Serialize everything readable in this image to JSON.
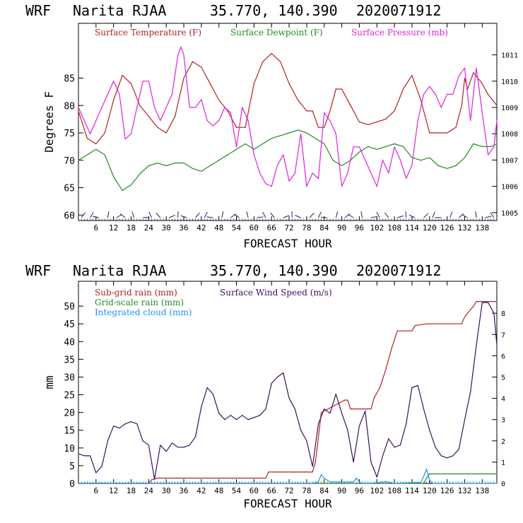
{
  "panels": [
    {
      "header": {
        "model": "WRF",
        "station": "Narita RJAA",
        "coords": "35.770, 140.390",
        "init": "2020071912"
      },
      "xlabel": "FORECAST HOUR",
      "ylabel_left": "Degrees F",
      "legend": [
        {
          "text": "Surface Temperature (F)",
          "color": "#b22222"
        },
        {
          "text": "Surface Dewpoint (F)",
          "color": "#228b22"
        },
        {
          "text": "Surface Pressure (mb)",
          "color": "#dd22dd"
        }
      ]
    },
    {
      "header": {
        "model": "WRF",
        "station": "Narita RJAA",
        "coords": "35.770, 140.390",
        "init": "2020071912"
      },
      "xlabel": "FORECAST HOUR",
      "ylabel_left": "mm",
      "legend": [
        {
          "text": "Sub-grid rain (mm)",
          "color": "#b22222"
        },
        {
          "text": "Surface Wind Speed (m/s)",
          "color": "#3a1060"
        },
        {
          "text": "Grid-scale rain (mm)",
          "color": "#228b22"
        },
        {
          "text": "Integrated cloud (mm)",
          "color": "#1e90ff"
        }
      ]
    }
  ],
  "chart_data": [
    {
      "type": "line",
      "xlim": [
        0,
        143
      ],
      "x_ticks": [
        6,
        12,
        18,
        24,
        30,
        36,
        42,
        48,
        54,
        60,
        66,
        72,
        78,
        84,
        90,
        96,
        102,
        108,
        114,
        120,
        126,
        132,
        138
      ],
      "ylim_left": [
        59,
        95
      ],
      "y_ticks_left": [
        60,
        65,
        70,
        75,
        80,
        85
      ],
      "ylim_right": [
        1004.7,
        1012.2
      ],
      "y_ticks_right": [
        1005,
        1006,
        1007,
        1008,
        1009,
        1010,
        1011
      ],
      "series": [
        {
          "name": "Surface Temperature (F)",
          "axis": "left",
          "color": "#b22222",
          "x": [
            0,
            3,
            6,
            9,
            12,
            15,
            18,
            21,
            24,
            27,
            30,
            33,
            36,
            39,
            42,
            45,
            48,
            51,
            54,
            57,
            60,
            63,
            66,
            69,
            72,
            75,
            78,
            80,
            82,
            84,
            86,
            88,
            90,
            93,
            96,
            99,
            102,
            105,
            108,
            111,
            114,
            117,
            120,
            123,
            126,
            129,
            131,
            132,
            133,
            135,
            138,
            140,
            143
          ],
          "y": [
            79,
            74,
            73,
            75,
            81,
            85.5,
            84,
            80,
            78,
            76,
            75,
            78,
            85,
            88,
            87,
            84,
            81,
            79,
            76,
            76,
            84,
            88,
            89.5,
            88,
            84,
            81,
            79,
            79,
            76,
            76,
            79,
            83,
            83,
            80,
            77,
            76.5,
            77,
            77.5,
            79,
            83,
            85.5,
            81,
            75,
            75,
            75,
            76,
            80,
            85,
            83,
            86,
            84,
            82,
            80
          ]
        },
        {
          "name": "Surface Dewpoint (F)",
          "axis": "left",
          "color": "#228b22",
          "x": [
            0,
            3,
            6,
            9,
            12,
            15,
            18,
            21,
            24,
            27,
            30,
            33,
            36,
            39,
            42,
            45,
            48,
            51,
            54,
            57,
            60,
            63,
            66,
            69,
            72,
            75,
            78,
            81,
            84,
            87,
            90,
            93,
            96,
            99,
            102,
            105,
            108,
            111,
            114,
            117,
            120,
            123,
            126,
            129,
            132,
            135,
            138,
            141,
            143
          ],
          "y": [
            70,
            71,
            72,
            71,
            67,
            64.5,
            65.5,
            67.5,
            69,
            69.5,
            69,
            69.5,
            69.5,
            68.5,
            68,
            69,
            70,
            71,
            72,
            73,
            72,
            73,
            74,
            74.5,
            75,
            75.5,
            75,
            74,
            73,
            70,
            69,
            70,
            71.5,
            72.5,
            72,
            72.5,
            73,
            72.5,
            70.5,
            70,
            70.5,
            69,
            68.5,
            69,
            70.5,
            73,
            72.5,
            72.5,
            73
          ]
        },
        {
          "name": "Surface Pressure (mb)",
          "axis": "right",
          "color": "#dd22dd",
          "x": [
            0,
            2,
            4,
            6,
            8,
            10,
            12,
            14,
            16,
            18,
            20,
            22,
            24,
            26,
            28,
            30,
            32,
            34,
            35,
            36,
            38,
            40,
            42,
            44,
            46,
            48,
            50,
            52,
            54,
            56,
            58,
            60,
            62,
            64,
            66,
            68,
            70,
            72,
            74,
            76,
            78,
            80,
            82,
            84,
            86,
            88,
            90,
            92,
            94,
            96,
            98,
            100,
            102,
            104,
            106,
            108,
            110,
            112,
            114,
            116,
            118,
            120,
            122,
            124,
            126,
            128,
            130,
            132,
            134,
            136,
            138,
            140,
            142,
            143
          ],
          "y": [
            1009,
            1008.5,
            1008,
            1008.5,
            1009,
            1009.5,
            1010,
            1009.5,
            1007.8,
            1008,
            1009,
            1010,
            1010,
            1009,
            1008.5,
            1009,
            1009.5,
            1011,
            1011.3,
            1011,
            1009,
            1009,
            1009.3,
            1008.5,
            1008.3,
            1008.5,
            1009,
            1008.8,
            1007.5,
            1009,
            1008.5,
            1007.2,
            1006.5,
            1006.1,
            1006,
            1006.8,
            1007.2,
            1006.2,
            1006.5,
            1008,
            1006,
            1006.5,
            1006.3,
            1008.8,
            1008.5,
            1008,
            1006,
            1006.5,
            1007.5,
            1007.5,
            1007,
            1006.5,
            1006,
            1007,
            1006.5,
            1007.5,
            1007,
            1006.3,
            1006.8,
            1008.5,
            1009.5,
            1009.8,
            1009.5,
            1009,
            1009.5,
            1009.5,
            1010.2,
            1010.5,
            1008.5,
            1010.5,
            1008.8,
            1007.2,
            1007.5,
            1008.5
          ]
        }
      ],
      "wind_barbs": "along bottom edge"
    },
    {
      "type": "line",
      "xlim": [
        0,
        143
      ],
      "x_ticks": [
        6,
        12,
        18,
        24,
        30,
        36,
        42,
        48,
        54,
        60,
        66,
        72,
        78,
        84,
        90,
        96,
        102,
        108,
        114,
        120,
        126,
        132,
        138
      ],
      "ylim_left": [
        0,
        57
      ],
      "y_ticks_left": [
        0,
        5,
        10,
        15,
        20,
        25,
        30,
        35,
        40,
        45,
        50
      ],
      "ylim_right": [
        0,
        9.5
      ],
      "y_ticks_right": [
        0,
        1,
        2,
        3,
        4,
        5,
        6,
        7,
        8
      ],
      "series": [
        {
          "name": "Sub-grid rain (mm)",
          "axis": "left",
          "color": "#b22222",
          "x": [
            0,
            24,
            25,
            27,
            64,
            65,
            80,
            81,
            82,
            83,
            91,
            92,
            93,
            100,
            101,
            103,
            105,
            107,
            109,
            111,
            114,
            115,
            119,
            120,
            131,
            132,
            135,
            136,
            143
          ],
          "y": [
            0,
            0,
            1,
            1.5,
            1.5,
            3.2,
            3.2,
            6,
            13,
            20,
            23.5,
            23.5,
            21,
            21,
            24,
            27,
            32,
            38,
            43,
            43,
            43,
            44.5,
            45,
            45,
            45,
            47,
            50,
            51.3,
            51.3
          ]
        },
        {
          "name": "Grid-scale rain (mm)",
          "axis": "left",
          "color": "#228b22",
          "x": [
            0,
            118,
            119,
            120,
            143
          ],
          "y": [
            0,
            0,
            1.5,
            2.7,
            2.7
          ]
        },
        {
          "name": "Integrated cloud (mm)",
          "axis": "left",
          "color": "#1e90ff",
          "x": [
            0,
            80,
            82,
            83,
            84,
            86,
            94,
            95,
            96,
            97,
            100,
            105,
            108,
            117,
            118,
            119,
            120,
            121,
            143
          ],
          "y": [
            0,
            0,
            0.5,
            2.5,
            1.5,
            0.4,
            0.4,
            1.5,
            0.4,
            0,
            0,
            0.5,
            0,
            0.3,
            2,
            4,
            1,
            0,
            0
          ]
        },
        {
          "name": "Surface Wind Speed (m/s)",
          "axis": "right",
          "color": "#3a1060",
          "x": [
            0,
            2,
            4,
            6,
            8,
            10,
            12,
            14,
            16,
            18,
            20,
            22,
            24,
            26,
            28,
            30,
            32,
            34,
            36,
            38,
            40,
            42,
            44,
            46,
            48,
            50,
            52,
            54,
            56,
            58,
            60,
            62,
            64,
            66,
            68,
            70,
            72,
            74,
            76,
            78,
            80,
            82,
            84,
            86,
            88,
            90,
            92,
            94,
            96,
            98,
            100,
            102,
            104,
            106,
            108,
            110,
            112,
            114,
            116,
            118,
            120,
            122,
            124,
            126,
            128,
            130,
            132,
            134,
            136,
            138,
            140,
            142,
            143
          ],
          "y": [
            1.4,
            1.3,
            1.3,
            0.5,
            0.8,
            2,
            2.7,
            2.6,
            2.8,
            2.9,
            2.8,
            2,
            1.8,
            0.2,
            1.8,
            1.5,
            1.9,
            1.7,
            1.7,
            1.8,
            2.2,
            3.6,
            4.5,
            4.2,
            3.3,
            3,
            3.2,
            3,
            3.2,
            3,
            3.1,
            3.2,
            3.5,
            4.7,
            5,
            5.2,
            4,
            3.5,
            2.5,
            2,
            0.8,
            2.8,
            3.5,
            3.3,
            4.2,
            3.3,
            2.5,
            1,
            2.7,
            3.4,
            1,
            0.3,
            1.3,
            2.1,
            1.7,
            1.8,
            2.8,
            4.5,
            4.6,
            3.5,
            2.5,
            1.7,
            1.3,
            1.2,
            1.3,
            1.6,
            3,
            4.3,
            6.5,
            8.5,
            8.5,
            8,
            6.5
          ]
        }
      ]
    }
  ]
}
